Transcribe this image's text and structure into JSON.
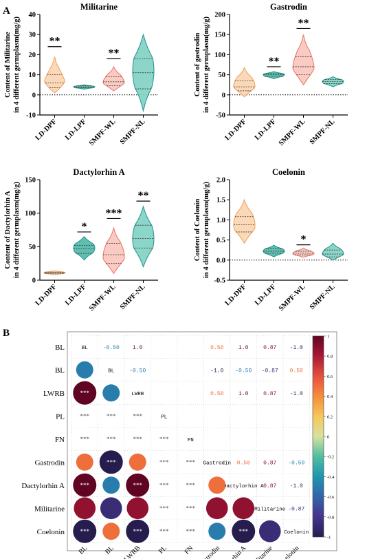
{
  "panel_labels": {
    "a": "A",
    "b": "B"
  },
  "chart_data": [
    {
      "type": "violin",
      "title": "Militarine",
      "ylabel_lines": [
        "Content of Militarine",
        "in 4 different germplasm(mg/g)"
      ],
      "categories": [
        "LD-DPF",
        "LD-LPF",
        "SMPF-WL",
        "SMPF-NL"
      ],
      "ylim": [
        -10,
        40
      ],
      "yticks": [
        -10,
        0,
        10,
        20,
        30,
        40
      ],
      "violins": [
        {
          "min": 1,
          "q1": 3.5,
          "median": 6,
          "q3": 10,
          "max": 19,
          "mode": 5,
          "color": "#f3a35e",
          "fill": "#fbd5b0"
        },
        {
          "min": 2.8,
          "q1": 3.5,
          "median": 4,
          "q3": 4.5,
          "max": 5,
          "mode": 4,
          "color": "#2a9a8e",
          "fill": "#4fb7a9"
        },
        {
          "min": 2,
          "q1": 4.5,
          "median": 6.5,
          "q3": 9,
          "max": 14,
          "mode": 6,
          "color": "#ee7b6b",
          "fill": "#f8c5bc"
        },
        {
          "min": -8,
          "q1": 3,
          "median": 11,
          "q3": 18,
          "max": 30,
          "mode": 12,
          "color": "#2a9a8e",
          "fill": "#7fd0c3"
        }
      ],
      "significance": [
        {
          "category": "LD-DPF",
          "label": "**",
          "y": 24
        },
        {
          "category": "SMPF-WL",
          "label": "**",
          "y": 18
        }
      ],
      "zero_line": true
    },
    {
      "type": "violin",
      "title": "Gastrodin",
      "ylabel_lines": [
        "Content of gastrodin",
        "in 4 different germplasm(mg/g)"
      ],
      "categories": [
        "LD-DPF",
        "LD-LPF",
        "SMPF-WL",
        "SMPF-NL"
      ],
      "ylim": [
        -50,
        200
      ],
      "yticks": [
        -50,
        0,
        50,
        100,
        150,
        200
      ],
      "violins": [
        {
          "min": -5,
          "q1": 10,
          "median": 20,
          "q3": 35,
          "max": 68,
          "mode": 22,
          "color": "#f3a35e",
          "fill": "#fbd5b0"
        },
        {
          "min": 40,
          "q1": 47,
          "median": 50,
          "q3": 53,
          "max": 58,
          "mode": 50,
          "color": "#2a9a8e",
          "fill": "#4fb7a9"
        },
        {
          "min": 25,
          "q1": 50,
          "median": 70,
          "q3": 95,
          "max": 150,
          "mode": 65,
          "color": "#ee7b6b",
          "fill": "#f8c5bc"
        },
        {
          "min": 20,
          "q1": 28,
          "median": 33,
          "q3": 38,
          "max": 45,
          "mode": 33,
          "color": "#2a9a8e",
          "fill": "#7fd0c3"
        }
      ],
      "significance": [
        {
          "category": "LD-LPF",
          "label": "**",
          "y": 70
        },
        {
          "category": "SMPF-WL",
          "label": "**",
          "y": 165
        }
      ],
      "zero_line": true
    },
    {
      "type": "violin",
      "title": "Dactylorhin A",
      "ylabel_lines": [
        "Content of Dactylorhin A",
        "in 4 different germplasm(mg/g)"
      ],
      "categories": [
        "LD-DPF",
        "LD-LPF",
        "SMPF-WL",
        "SMPF-NL"
      ],
      "ylim": [
        0,
        150
      ],
      "yticks": [
        0,
        50,
        100,
        150
      ],
      "violins": [
        {
          "min": 8,
          "q1": 10,
          "median": 11,
          "q3": 12,
          "max": 14,
          "mode": 11,
          "color": "#f3a35e",
          "fill": "#fbd5b0"
        },
        {
          "min": 30,
          "q1": 40,
          "median": 47,
          "q3": 52,
          "max": 65,
          "mode": 48,
          "color": "#2a9a8e",
          "fill": "#4fb7a9"
        },
        {
          "min": 10,
          "q1": 25,
          "median": 38,
          "q3": 55,
          "max": 78,
          "mode": 35,
          "color": "#ee7b6b",
          "fill": "#f8c5bc"
        },
        {
          "min": 20,
          "q1": 48,
          "median": 62,
          "q3": 82,
          "max": 110,
          "mode": 62,
          "color": "#2a9a8e",
          "fill": "#7fd0c3"
        }
      ],
      "significance": [
        {
          "category": "LD-LPF",
          "label": "*",
          "y": 72
        },
        {
          "category": "SMPF-WL",
          "label": "***",
          "y": 92
        },
        {
          "category": "SMPF-NL",
          "label": "**",
          "y": 118
        }
      ],
      "zero_line": false
    },
    {
      "type": "violin",
      "title": "Coelonin",
      "ylabel_lines": [
        "Content of Coelonin",
        "in 4 different germplasm(mg/g)"
      ],
      "categories": [
        "LD-DPF",
        "LD-LPF",
        "SMPF-WL",
        "SMPF-NL"
      ],
      "ylim": [
        -0.5,
        2.0
      ],
      "yticks": [
        -0.5,
        0.0,
        0.5,
        1.0,
        1.5,
        2.0
      ],
      "yticklabels": [
        "-0.5",
        "0.0",
        "0.5",
        "1.0",
        "1.5",
        "2.0"
      ],
      "violins": [
        {
          "min": 0.42,
          "q1": 0.7,
          "median": 0.88,
          "q3": 1.08,
          "max": 1.5,
          "mode": 0.88,
          "color": "#f3a35e",
          "fill": "#fbd5b0"
        },
        {
          "min": 0.08,
          "q1": 0.17,
          "median": 0.22,
          "q3": 0.28,
          "max": 0.37,
          "mode": 0.22,
          "color": "#2a9a8e",
          "fill": "#4fb7a9"
        },
        {
          "min": 0.07,
          "q1": 0.13,
          "median": 0.17,
          "q3": 0.22,
          "max": 0.3,
          "mode": 0.16,
          "color": "#ee7b6b",
          "fill": "#f8c5bc"
        },
        {
          "min": 0.0,
          "q1": 0.08,
          "median": 0.15,
          "q3": 0.25,
          "max": 0.42,
          "mode": 0.16,
          "color": "#2a9a8e",
          "fill": "#7fd0c3"
        }
      ],
      "significance": [
        {
          "category": "SMPF-WL",
          "label": "*",
          "y": 0.38
        }
      ],
      "zero_line": true
    },
    {
      "type": "heatmap",
      "variables": [
        "BL",
        "BL",
        "LWRB",
        "PL",
        "FN",
        "Gastrodin",
        "Dactylorhin A",
        "Militarine",
        "Coelonin"
      ],
      "colorbar_ticks": [
        "1",
        "0.8",
        "0.6",
        "0.4",
        "0.2",
        "0",
        "-0.2",
        "-0.4",
        "-0.6",
        "-0.8",
        "-1"
      ],
      "colorbar_range": [
        -1,
        1
      ],
      "upper_labels": [
        {
          "row": 0,
          "col": 1,
          "text": "-0.50",
          "value": -0.5
        },
        {
          "row": 0,
          "col": 2,
          "text": "1.0",
          "value": 1.0
        },
        {
          "row": 0,
          "col": 5,
          "text": "0.50",
          "value": 0.5
        },
        {
          "row": 0,
          "col": 6,
          "text": "1.0",
          "value": 1.0
        },
        {
          "row": 0,
          "col": 7,
          "text": "0.87",
          "value": 0.87
        },
        {
          "row": 0,
          "col": 8,
          "text": "-1.0",
          "value": -1.0
        },
        {
          "row": 1,
          "col": 2,
          "text": "-0.50",
          "value": -0.5
        },
        {
          "row": 1,
          "col": 5,
          "text": "-1.0",
          "value": -1.0
        },
        {
          "row": 1,
          "col": 6,
          "text": "-0.50",
          "value": -0.5
        },
        {
          "row": 1,
          "col": 7,
          "text": "-0.87",
          "value": -0.87
        },
        {
          "row": 1,
          "col": 8,
          "text": "0.50",
          "value": 0.5
        },
        {
          "row": 2,
          "col": 5,
          "text": "0.50",
          "value": 0.5
        },
        {
          "row": 2,
          "col": 6,
          "text": "1.0",
          "value": 1.0
        },
        {
          "row": 2,
          "col": 7,
          "text": "0.87",
          "value": 0.87
        },
        {
          "row": 2,
          "col": 8,
          "text": "-1.0",
          "value": -1.0
        },
        {
          "row": 5,
          "col": 6,
          "text": "0.50",
          "value": 0.5
        },
        {
          "row": 5,
          "col": 7,
          "text": "0.87",
          "value": 0.87
        },
        {
          "row": 5,
          "col": 8,
          "text": "-0.50",
          "value": -0.5
        },
        {
          "row": 6,
          "col": 7,
          "text": "0.87",
          "value": 0.87
        },
        {
          "row": 6,
          "col": 8,
          "text": "-1.0",
          "value": -1.0
        },
        {
          "row": 7,
          "col": 8,
          "text": "-0.87",
          "value": -0.87
        }
      ],
      "lower_circles": [
        {
          "row": 1,
          "col": 0,
          "value": -0.5,
          "label": ""
        },
        {
          "row": 2,
          "col": 0,
          "value": 1.0,
          "label": "***"
        },
        {
          "row": 2,
          "col": 1,
          "value": -0.5,
          "label": ""
        },
        {
          "row": 5,
          "col": 0,
          "value": 0.5,
          "label": ""
        },
        {
          "row": 5,
          "col": 1,
          "value": -1.0,
          "label": "***"
        },
        {
          "row": 5,
          "col": 2,
          "value": 0.5,
          "label": ""
        },
        {
          "row": 6,
          "col": 0,
          "value": 1.0,
          "label": "***"
        },
        {
          "row": 6,
          "col": 1,
          "value": -0.5,
          "label": ""
        },
        {
          "row": 6,
          "col": 2,
          "value": 1.0,
          "label": "***"
        },
        {
          "row": 6,
          "col": 5,
          "value": 0.5,
          "label": ""
        },
        {
          "row": 7,
          "col": 0,
          "value": 0.87,
          "label": ""
        },
        {
          "row": 7,
          "col": 1,
          "value": -0.87,
          "label": ""
        },
        {
          "row": 7,
          "col": 2,
          "value": 0.87,
          "label": ""
        },
        {
          "row": 7,
          "col": 5,
          "value": 0.87,
          "label": ""
        },
        {
          "row": 7,
          "col": 6,
          "value": 0.87,
          "label": ""
        },
        {
          "row": 8,
          "col": 0,
          "value": -1.0,
          "label": "***"
        },
        {
          "row": 8,
          "col": 1,
          "value": 0.5,
          "label": ""
        },
        {
          "row": 8,
          "col": 2,
          "value": -1.0,
          "label": "***"
        },
        {
          "row": 8,
          "col": 5,
          "value": -0.5,
          "label": ""
        },
        {
          "row": 8,
          "col": 6,
          "value": -1.0,
          "label": "***"
        },
        {
          "row": 8,
          "col": 7,
          "value": -0.87,
          "label": ""
        }
      ],
      "lower_stars": [
        {
          "row": 3,
          "col": 0,
          "label": "***"
        },
        {
          "row": 3,
          "col": 1,
          "label": "***"
        },
        {
          "row": 3,
          "col": 2,
          "label": "***"
        },
        {
          "row": 4,
          "col": 0,
          "label": "***"
        },
        {
          "row": 4,
          "col": 1,
          "label": "***"
        },
        {
          "row": 4,
          "col": 2,
          "label": "***"
        },
        {
          "row": 4,
          "col": 3,
          "label": "***"
        },
        {
          "row": 5,
          "col": 3,
          "label": "***"
        },
        {
          "row": 5,
          "col": 4,
          "label": "***"
        },
        {
          "row": 6,
          "col": 3,
          "label": "***"
        },
        {
          "row": 6,
          "col": 4,
          "label": "***"
        },
        {
          "row": 7,
          "col": 3,
          "label": "***"
        },
        {
          "row": 7,
          "col": 4,
          "label": "***"
        },
        {
          "row": 8,
          "col": 3,
          "label": "***"
        },
        {
          "row": 8,
          "col": 4,
          "label": "***"
        }
      ]
    }
  ]
}
